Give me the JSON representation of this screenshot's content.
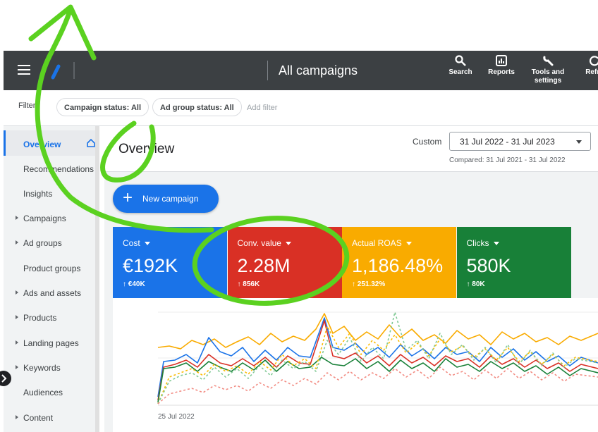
{
  "header": {
    "title": "All campaigns",
    "actions": [
      "Search",
      "Reports",
      "Tools and settings",
      "Refre"
    ]
  },
  "filters": {
    "label": "Filters",
    "chips": [
      "Campaign status: All",
      "Ad group status: All"
    ],
    "add": "Add filter"
  },
  "sidebar": [
    "Overview",
    "Recommendations",
    "Insights",
    "Campaigns",
    "Ad groups",
    "Product groups",
    "Ads and assets",
    "Products",
    "Landing pages",
    "Keywords",
    "Audiences",
    "Content"
  ],
  "overview": {
    "title": "Overview",
    "range_type": "Custom",
    "date_range": "31 Jul 2022 - 31 Jul 2023",
    "compared": "Compared: 31 Jul 2021 - 31 Jul 2022",
    "button": "New campaign",
    "chart_start": "25 Jul 2022"
  },
  "cards": [
    {
      "name": "Cost",
      "value": "€192K",
      "delta": "↑ €40K",
      "color": "#1a73e8"
    },
    {
      "name": "Conv. value",
      "value": "2.28M",
      "delta": "↑ 856K",
      "color": "#d93025"
    },
    {
      "name": "Actual ROAS",
      "value": "1,186.48%",
      "delta": "↑ 251.32%",
      "color": "#f9ab00"
    },
    {
      "name": "Clicks",
      "value": "580K",
      "delta": "↑ 80K",
      "color": "#188038"
    }
  ]
}
